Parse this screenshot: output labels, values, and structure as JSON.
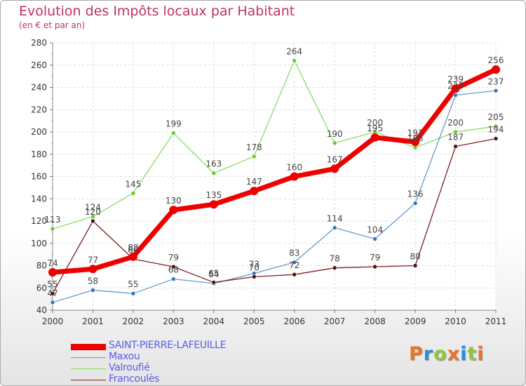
{
  "header": {
    "title": "Evolution des Impôts locaux par Habitant",
    "subtitle": "(en € et par an)"
  },
  "brand": {
    "text": "Proxiti",
    "colors": [
      "#e8732a",
      "#2c8fd6",
      "#8cc63f",
      "#e8732a",
      "#2c8fd6",
      "#8cc63f",
      "#e8732a"
    ]
  },
  "chart_data": {
    "type": "line",
    "x": [
      "2000",
      "2001",
      "2002",
      "2003",
      "2004",
      "2005",
      "2006",
      "2007",
      "2008",
      "2009",
      "2010",
      "2011"
    ],
    "ylim": [
      40,
      280
    ],
    "yticks": [
      "40",
      "60",
      "80",
      "100",
      "120",
      "140",
      "160",
      "180",
      "200",
      "220",
      "240",
      "260",
      "280"
    ],
    "grid": true,
    "series": [
      {
        "name": "Valroufié",
        "color": "#88dd66",
        "marker": "#66cc33",
        "values": [
          113,
          124,
          145,
          199,
          163,
          178,
          264,
          190,
          200,
          186,
          200,
          205
        ],
        "labels": [
          "113",
          "124",
          "145",
          "199",
          "163",
          "178",
          "264",
          "190",
          "200",
          "186",
          "200",
          "205"
        ]
      },
      {
        "name": "Maxou",
        "color": "#6699cc",
        "marker": "#3377bb",
        "values": [
          47,
          58,
          55,
          68,
          64,
          73,
          83,
          114,
          104,
          136,
          233,
          237
        ],
        "labels": [
          "47",
          "58",
          "55",
          "68",
          "64",
          "73",
          "83",
          "114",
          "104",
          "136",
          "233",
          "237"
        ]
      },
      {
        "name": "Francoulès",
        "color": "#772222",
        "marker": "#551111",
        "values": [
          55,
          120,
          86,
          79,
          65,
          70,
          72,
          78,
          79,
          80,
          187,
          194
        ],
        "labels": [
          "55",
          "120",
          "86",
          "79",
          "65",
          "70",
          "72",
          "78",
          "79",
          "80",
          "187",
          "194"
        ]
      },
      {
        "name": "SAINT-PIERRE-LAFEUILLE",
        "color": "#ee0000",
        "marker": "#ee0000",
        "values": [
          74,
          77,
          88,
          130,
          135,
          147,
          160,
          167,
          195,
          191,
          239,
          256
        ],
        "labels": [
          "74",
          "77",
          "88",
          "130",
          "135",
          "147",
          "160",
          "167",
          "195",
          "191",
          "239",
          "256"
        ]
      }
    ],
    "legend": [
      {
        "name": "SAINT-PIERRE-LAFEUILLE",
        "color": "#ee0000"
      },
      {
        "name": "Maxou",
        "color": "#6699cc"
      },
      {
        "name": "Valroufié",
        "color": "#88dd66"
      },
      {
        "name": "Francoulès",
        "color": "#772222"
      }
    ]
  }
}
